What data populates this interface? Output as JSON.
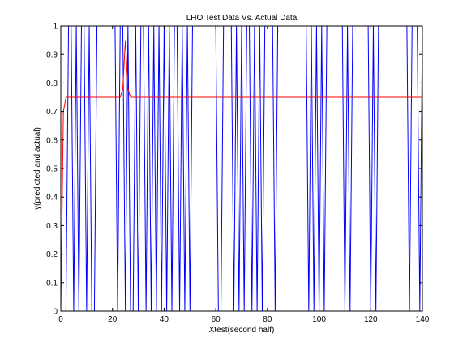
{
  "figure_bg": "#ffffff",
  "chart_data": {
    "type": "line",
    "title": "LHO Test Data Vs. Actual Data",
    "xlabel": "Xtest(second half)",
    "ylabel": "y(predicted and actual)",
    "xlim": [
      0,
      140
    ],
    "ylim": [
      0,
      1
    ],
    "xticks": [
      0,
      20,
      40,
      60,
      80,
      100,
      120,
      140
    ],
    "yticks": [
      0,
      0.1,
      0.2,
      0.3,
      0.4,
      0.5,
      0.6,
      0.7,
      0.8,
      0.9,
      1
    ],
    "grid": false,
    "legend": null,
    "series": [
      {
        "color": "#0000ff",
        "x": [
          0,
          1,
          2,
          3,
          4,
          5,
          6,
          7,
          8,
          9,
          10,
          11,
          12,
          13,
          14,
          15,
          16,
          17,
          18,
          19,
          20,
          21,
          22,
          23,
          24,
          25,
          26,
          27,
          28,
          29,
          30,
          31,
          32,
          33,
          34,
          35,
          36,
          37,
          38,
          39,
          40,
          41,
          42,
          43,
          44,
          45,
          46,
          47,
          48,
          49,
          50,
          51,
          52,
          53,
          54,
          55,
          56,
          57,
          58,
          59,
          60,
          61,
          62,
          63,
          64,
          65,
          66,
          67,
          68,
          69,
          70,
          71,
          72,
          73,
          74,
          75,
          76,
          77,
          78,
          79,
          80,
          81,
          82,
          83,
          84,
          85,
          86,
          87,
          88,
          89,
          90,
          91,
          92,
          93,
          94,
          95,
          96,
          97,
          98,
          99,
          100,
          101,
          102,
          103,
          104,
          105,
          106,
          107,
          108,
          109,
          110,
          111,
          112,
          113,
          114,
          115,
          116,
          117,
          118,
          119,
          120,
          121,
          122,
          123,
          124,
          125,
          126,
          127,
          128,
          129,
          130,
          131,
          132,
          133,
          134,
          135,
          136,
          137,
          138,
          139,
          140
        ],
        "y": [
          0,
          0,
          0,
          1,
          1,
          0,
          1,
          0,
          1,
          1,
          0,
          1,
          0,
          0,
          1,
          1,
          1,
          1,
          1,
          1,
          1,
          1,
          0,
          1,
          1,
          0,
          1,
          0,
          0,
          1,
          0,
          1,
          1,
          0,
          1,
          0,
          1,
          0,
          1,
          0,
          1,
          0,
          1,
          0,
          1,
          1,
          0,
          1,
          0,
          1,
          0,
          1,
          1,
          1,
          1,
          1,
          1,
          1,
          1,
          1,
          1,
          0,
          0,
          1,
          1,
          1,
          1,
          0,
          1,
          0,
          1,
          0,
          1,
          1,
          0,
          1,
          0,
          1,
          0,
          1,
          1,
          1,
          1,
          0,
          1,
          1,
          1,
          1,
          1,
          1,
          1,
          1,
          1,
          1,
          1,
          1,
          0,
          1,
          0,
          1,
          0,
          1,
          0,
          1,
          1,
          1,
          1,
          1,
          1,
          1,
          0,
          1,
          0,
          1,
          1,
          1,
          1,
          1,
          1,
          1,
          0,
          1,
          0,
          1,
          1,
          1,
          1,
          1,
          1,
          1,
          1,
          1,
          1,
          1,
          1,
          0,
          1,
          1,
          1,
          0,
          1
        ]
      },
      {
        "color": "#ff0000",
        "x": [
          0,
          1,
          2,
          3,
          4,
          5,
          6,
          7,
          8,
          9,
          10,
          11,
          12,
          13,
          14,
          15,
          16,
          17,
          18,
          19,
          20,
          21,
          22,
          23,
          24,
          25,
          26,
          27,
          28,
          29,
          30,
          31,
          32,
          33,
          34,
          35,
          36,
          37,
          38,
          39,
          40,
          41,
          42,
          43,
          44,
          45,
          46,
          47,
          48,
          49,
          50,
          51,
          52,
          53,
          54,
          55,
          56,
          57,
          58,
          59,
          60,
          61,
          62,
          63,
          64,
          65,
          66,
          67,
          68,
          69,
          70,
          71,
          72,
          73,
          74,
          75,
          76,
          77,
          78,
          79,
          80,
          81,
          82,
          83,
          84,
          85,
          86,
          87,
          88,
          89,
          90,
          91,
          92,
          93,
          94,
          95,
          96,
          97,
          98,
          99,
          100,
          101,
          102,
          103,
          104,
          105,
          106,
          107,
          108,
          109,
          110,
          111,
          112,
          113,
          114,
          115,
          116,
          117,
          118,
          119,
          120,
          121,
          122,
          123,
          124,
          125,
          126,
          127,
          128,
          129,
          130,
          131,
          132,
          133,
          134,
          135,
          136,
          137,
          138,
          139,
          140
        ],
        "y": [
          0,
          0.7,
          0.75,
          0.75,
          0.75,
          0.75,
          0.75,
          0.75,
          0.75,
          0.75,
          0.75,
          0.75,
          0.75,
          0.75,
          0.75,
          0.75,
          0.75,
          0.75,
          0.75,
          0.75,
          0.75,
          0.75,
          0.75,
          0.75,
          0.78,
          0.95,
          0.78,
          0.75,
          0.75,
          0.75,
          0.75,
          0.75,
          0.75,
          0.75,
          0.75,
          0.75,
          0.75,
          0.75,
          0.75,
          0.75,
          0.75,
          0.75,
          0.75,
          0.75,
          0.75,
          0.75,
          0.75,
          0.75,
          0.75,
          0.75,
          0.75,
          0.75,
          0.75,
          0.75,
          0.75,
          0.75,
          0.75,
          0.75,
          0.75,
          0.75,
          0.75,
          0.75,
          0.75,
          0.75,
          0.75,
          0.75,
          0.75,
          0.75,
          0.75,
          0.75,
          0.75,
          0.75,
          0.75,
          0.75,
          0.75,
          0.75,
          0.75,
          0.75,
          0.75,
          0.75,
          0.75,
          0.75,
          0.75,
          0.75,
          0.75,
          0.75,
          0.75,
          0.75,
          0.75,
          0.75,
          0.75,
          0.75,
          0.75,
          0.75,
          0.75,
          0.75,
          0.75,
          0.75,
          0.75,
          0.75,
          0.75,
          0.75,
          0.75,
          0.75,
          0.75,
          0.75,
          0.75,
          0.75,
          0.75,
          0.75,
          0.75,
          0.75,
          0.75,
          0.75,
          0.75,
          0.75,
          0.75,
          0.75,
          0.75,
          0.75,
          0.75,
          0.75,
          0.75,
          0.75,
          0.75,
          0.75,
          0.75,
          0.75,
          0.75,
          0.75,
          0.75,
          0.75,
          0.75,
          0.75,
          0.75,
          0.75,
          0.75,
          0.75,
          0.75,
          0.75,
          0.75
        ]
      }
    ]
  }
}
